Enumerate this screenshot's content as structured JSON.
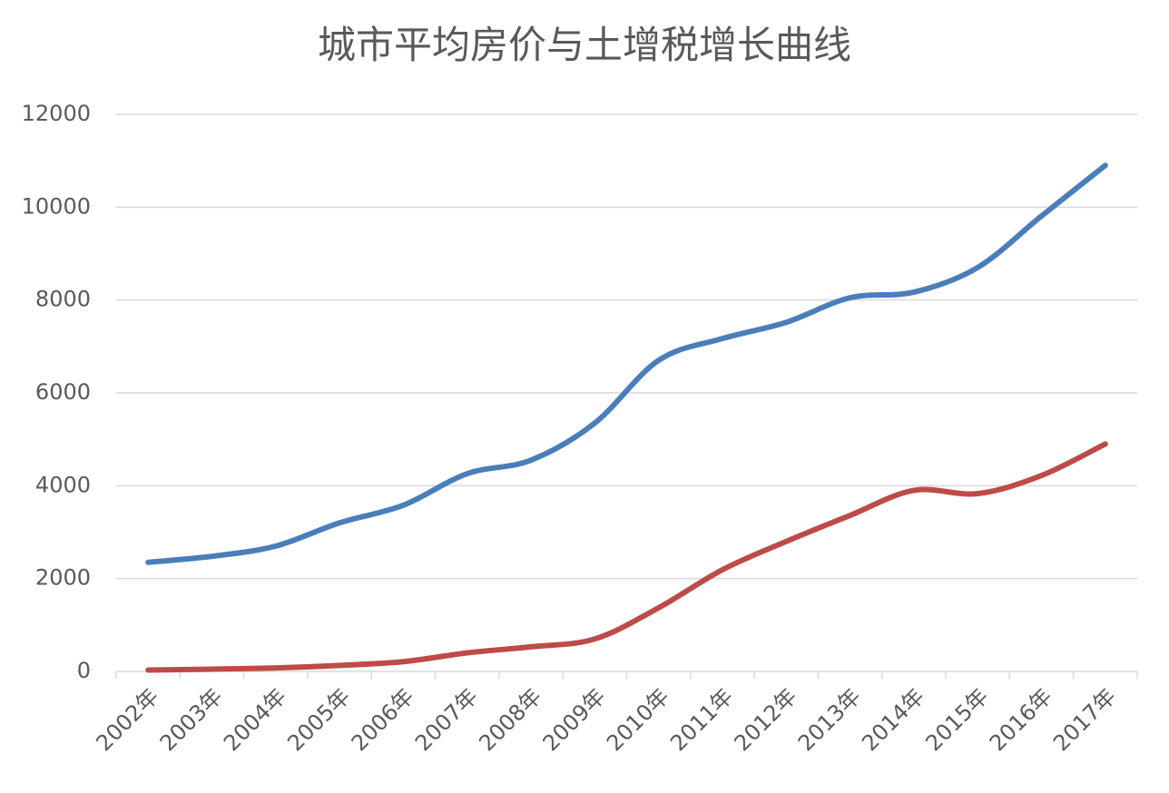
{
  "chart_data": {
    "type": "line",
    "title": "城市平均房价与土增税增长曲线",
    "categories": [
      "2002年",
      "2003年",
      "2004年",
      "2005年",
      "2006年",
      "2007年",
      "2008年",
      "2009年",
      "2010年",
      "2011年",
      "2012年",
      "2013年",
      "2014年",
      "2015年",
      "2016年",
      "2017年"
    ],
    "series": [
      {
        "color": "#4a7ebb",
        "values": [
          2350,
          2480,
          2700,
          3200,
          3580,
          4260,
          4550,
          5350,
          6700,
          7170,
          7520,
          8050,
          8170,
          8700,
          9810,
          10900
        ]
      },
      {
        "color": "#be4b48",
        "values": [
          30,
          50,
          75,
          130,
          210,
          400,
          530,
          700,
          1370,
          2190,
          2800,
          3360,
          3900,
          3830,
          4220,
          4900
        ]
      }
    ],
    "ylim": [
      0,
      12000
    ],
    "yticks": [
      0,
      2000,
      4000,
      6000,
      8000,
      10000,
      12000
    ],
    "grid": true
  }
}
